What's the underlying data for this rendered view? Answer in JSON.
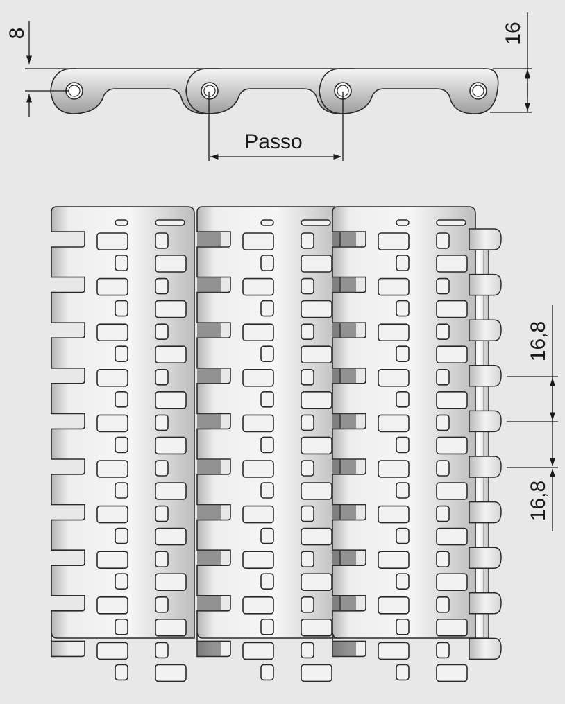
{
  "dimensions": {
    "link_height": "8",
    "overall_height": "16",
    "pitch_label": "Passo",
    "spacing_upper": "16,8",
    "spacing_lower": "16,8"
  },
  "colors": {
    "background": "#e8e8e8",
    "metal_light": "#f4f4f4",
    "metal_dark": "#a9a9a9",
    "line": "#2a2a2a"
  },
  "belt": {
    "modules": 3,
    "rows": 10
  }
}
